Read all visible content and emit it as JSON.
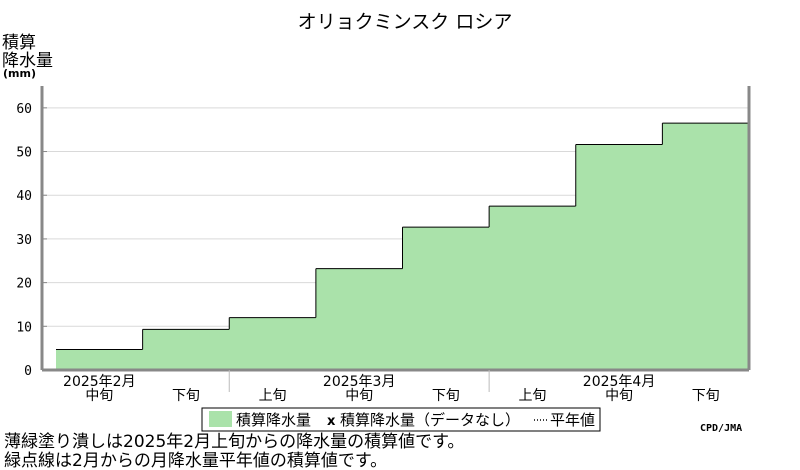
{
  "chart_data": {
    "type": "area",
    "title": "オリョクミンスク ロシア",
    "ylabel_lines": [
      "積算",
      "降水量"
    ],
    "yunit": "(mm)",
    "ylim": [
      0,
      65
    ],
    "yticks": [
      0,
      10,
      20,
      30,
      40,
      50,
      60
    ],
    "grid": true,
    "x_periods": [
      "中旬",
      "下旬",
      "上旬",
      "中旬",
      "下旬",
      "上旬",
      "中旬",
      "下旬"
    ],
    "month_labels": [
      {
        "label": "2025年2月",
        "period_index": 0
      },
      {
        "label": "2025年3月",
        "period_index": 3
      },
      {
        "label": "2025年4月",
        "period_index": 6
      }
    ],
    "series": [
      {
        "name": "積算降水量",
        "color": "#aae2aa",
        "values": [
          4.7,
          9.3,
          12.0,
          23.2,
          32.7,
          37.5,
          51.6,
          56.5
        ]
      }
    ],
    "legend": {
      "placement": "bottom",
      "items": [
        {
          "label": "積算降水量",
          "marker": "swatch",
          "color": "#aae2aa"
        },
        {
          "label": "積算降水量（データなし）",
          "marker": "x"
        },
        {
          "label": "平年値",
          "marker": "dotted-line"
        }
      ]
    },
    "credit": "CPD/JMA",
    "notes": [
      "薄緑塗り潰しは2025年2月上旬からの降水量の積算値です。",
      "緑点線は2月からの月降水量平年値の積算値です。"
    ]
  }
}
